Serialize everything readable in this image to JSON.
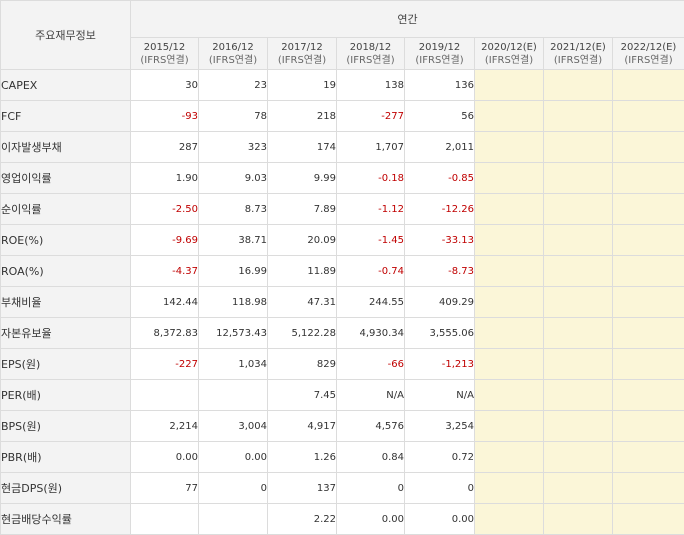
{
  "header": {
    "corner_label": "주요재무정보",
    "group_label": "연간",
    "periods": [
      {
        "year": "2015/12",
        "sub": "(IFRS연결)",
        "estimate": false
      },
      {
        "year": "2016/12",
        "sub": "(IFRS연결)",
        "estimate": false
      },
      {
        "year": "2017/12",
        "sub": "(IFRS연결)",
        "estimate": false
      },
      {
        "year": "2018/12",
        "sub": "(IFRS연결)",
        "estimate": false
      },
      {
        "year": "2019/12",
        "sub": "(IFRS연결)",
        "estimate": false
      },
      {
        "year": "2020/12(E)",
        "sub": "(IFRS연결)",
        "estimate": true
      },
      {
        "year": "2021/12(E)",
        "sub": "(IFRS연결)",
        "estimate": true
      },
      {
        "year": "2022/12(E)",
        "sub": "(IFRS연결)",
        "estimate": true
      }
    ]
  },
  "rows": [
    {
      "label": "CAPEX",
      "values": [
        "30",
        "23",
        "19",
        "138",
        "136",
        "",
        "",
        ""
      ]
    },
    {
      "label": "FCF",
      "values": [
        "-93",
        "78",
        "218",
        "-277",
        "56",
        "",
        "",
        ""
      ]
    },
    {
      "label": "이자발생부채",
      "values": [
        "287",
        "323",
        "174",
        "1,707",
        "2,011",
        "",
        "",
        ""
      ]
    },
    {
      "label": "영업이익률",
      "values": [
        "1.90",
        "9.03",
        "9.99",
        "-0.18",
        "-0.85",
        "",
        "",
        ""
      ]
    },
    {
      "label": "순이익률",
      "values": [
        "-2.50",
        "8.73",
        "7.89",
        "-1.12",
        "-12.26",
        "",
        "",
        ""
      ]
    },
    {
      "label": "ROE(%)",
      "values": [
        "-9.69",
        "38.71",
        "20.09",
        "-1.45",
        "-33.13",
        "",
        "",
        ""
      ]
    },
    {
      "label": "ROA(%)",
      "values": [
        "-4.37",
        "16.99",
        "11.89",
        "-0.74",
        "-8.73",
        "",
        "",
        ""
      ]
    },
    {
      "label": "부채비율",
      "values": [
        "142.44",
        "118.98",
        "47.31",
        "244.55",
        "409.29",
        "",
        "",
        ""
      ]
    },
    {
      "label": "자본유보율",
      "values": [
        "8,372.83",
        "12,573.43",
        "5,122.28",
        "4,930.34",
        "3,555.06",
        "",
        "",
        ""
      ]
    },
    {
      "label": "EPS(원)",
      "values": [
        "-227",
        "1,034",
        "829",
        "-66",
        "-1,213",
        "",
        "",
        ""
      ]
    },
    {
      "label": "PER(배)",
      "values": [
        "",
        "",
        "7.45",
        "N/A",
        "N/A",
        "",
        "",
        ""
      ]
    },
    {
      "label": "BPS(원)",
      "values": [
        "2,214",
        "3,004",
        "4,917",
        "4,576",
        "3,254",
        "",
        "",
        ""
      ]
    },
    {
      "label": "PBR(배)",
      "values": [
        "0.00",
        "0.00",
        "1.26",
        "0.84",
        "0.72",
        "",
        "",
        ""
      ]
    },
    {
      "label": "현금DPS(원)",
      "values": [
        "77",
        "0",
        "137",
        "0",
        "0",
        "",
        "",
        ""
      ]
    },
    {
      "label": "현금배당수익률",
      "values": [
        "",
        "",
        "2.22",
        "0.00",
        "0.00",
        "",
        "",
        ""
      ]
    }
  ],
  "colors": {
    "header_bg": "#f3f3f3",
    "estimate_bg": "#fbf6d8",
    "border": "#dcdcdc",
    "negative": "#c00000",
    "text": "#333333"
  }
}
